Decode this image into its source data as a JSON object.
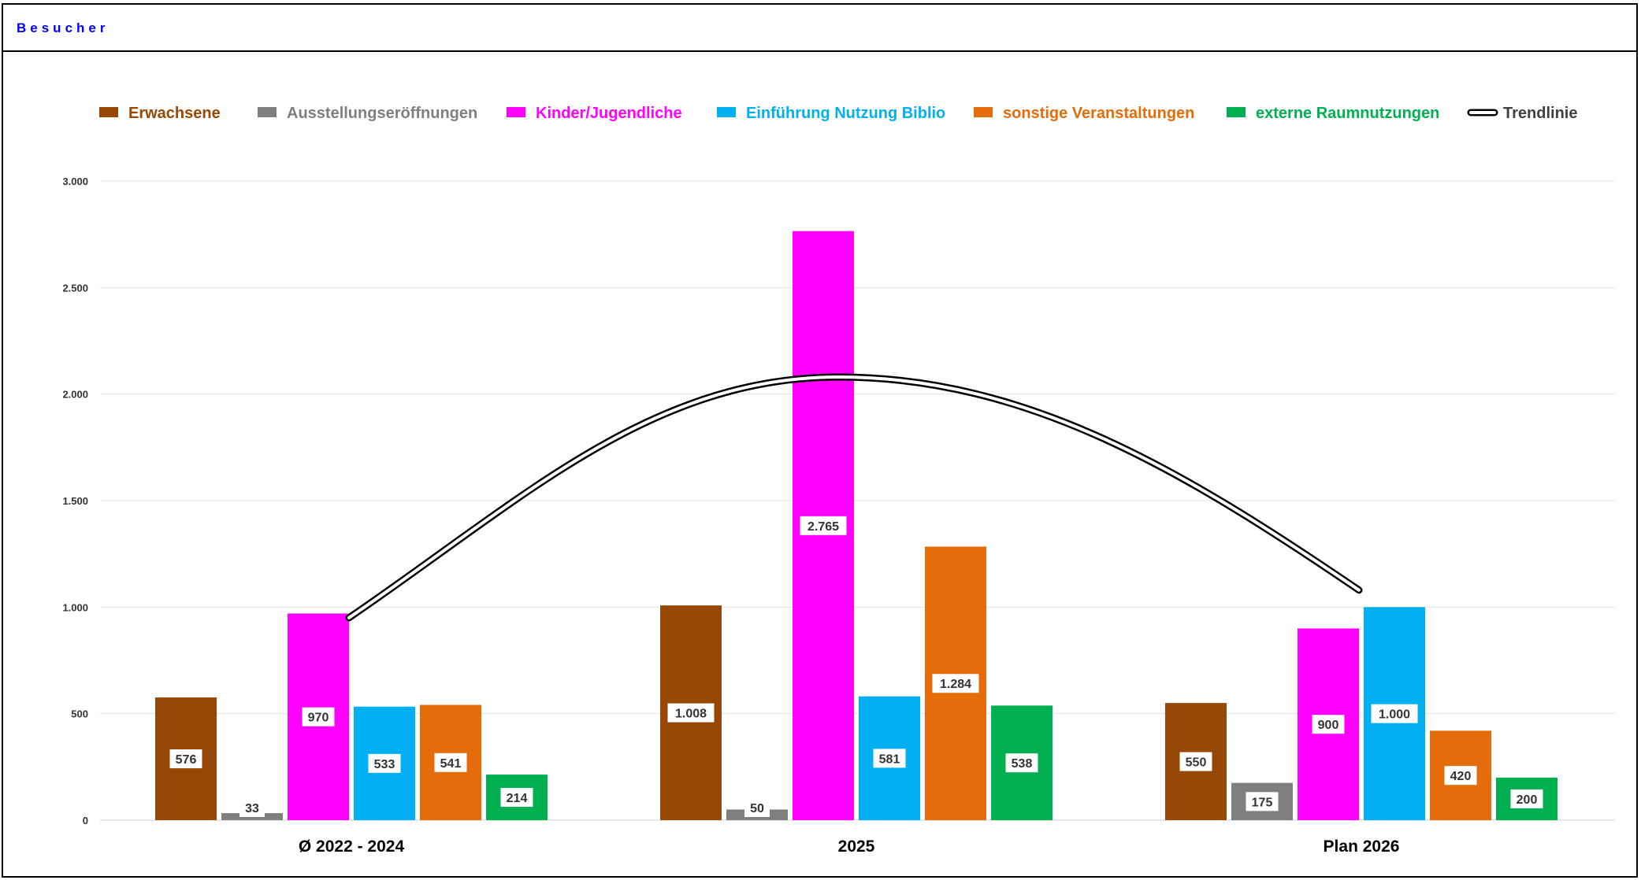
{
  "header": {
    "title": "Besucher"
  },
  "chart_data": {
    "type": "bar",
    "title": "",
    "xlabel": "",
    "ylabel": "",
    "categories": [
      "Ø 2022 - 2024",
      "2025",
      "Plan 2026"
    ],
    "ylim": [
      0,
      3000
    ],
    "yticks": [
      0,
      500,
      1000,
      1500,
      2000,
      2500,
      3000
    ],
    "ytick_labels": [
      "0",
      "500",
      "1.000",
      "1.500",
      "2.000",
      "2.500",
      "3.000"
    ],
    "grid": true,
    "legend_position": "top",
    "series": [
      {
        "name": "Erwachsene",
        "color": "#974706",
        "values": [
          576,
          1008,
          550
        ],
        "labels": [
          "576",
          "1.008",
          "550"
        ]
      },
      {
        "name": "Ausstellungseröffnungen",
        "color": "#7f7f7f",
        "values": [
          33,
          50,
          175
        ],
        "labels": [
          "33",
          "50",
          "175"
        ]
      },
      {
        "name": "Kinder/Jugendliche",
        "color": "#ff00ff",
        "values": [
          970,
          2765,
          900
        ],
        "labels": [
          "970",
          "2.765",
          "900"
        ]
      },
      {
        "name": "Einführung Nutzung Biblio",
        "color": "#00b0f0",
        "values": [
          533,
          581,
          1000
        ],
        "labels": [
          "533",
          "581",
          "1.000"
        ]
      },
      {
        "name": "sonstige Veranstaltungen",
        "color": "#e46c0a",
        "values": [
          541,
          1284,
          420
        ],
        "labels": [
          "541",
          "1.284",
          "420"
        ]
      },
      {
        "name": "externe Raumnutzungen",
        "color": "#00b050",
        "values": [
          214,
          538,
          200
        ],
        "labels": [
          "214",
          "538",
          "200"
        ]
      }
    ],
    "trendline": {
      "name": "Trendlinie",
      "color": "#000000",
      "type": "polynomial",
      "x": [
        "Ø 2022 - 2024",
        "2025",
        "Plan 2026"
      ],
      "values": [
        950,
        2080,
        1080
      ]
    }
  }
}
